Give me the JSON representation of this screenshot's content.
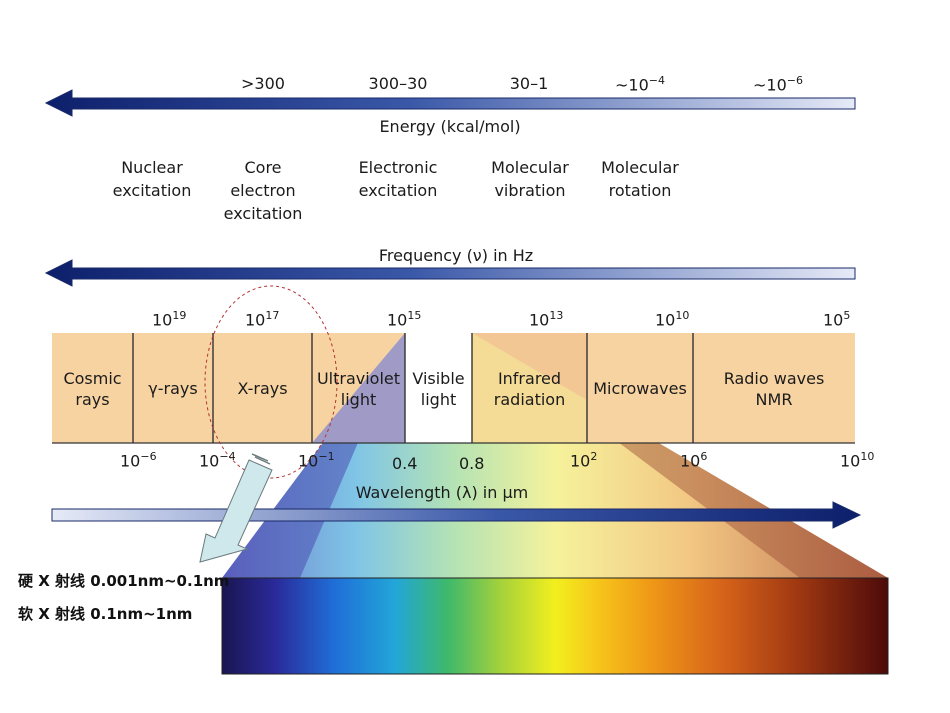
{
  "energy": {
    "values": [
      ">300",
      "300–30",
      "30–1",
      "~10",
      "~10"
    ],
    "exp_rot": "−4",
    "exp_nmr": "−6",
    "label": "Energy (kcal/mol)"
  },
  "processes": {
    "nuclear": [
      "Nuclear",
      "excitation"
    ],
    "core": [
      "Core",
      "electron",
      "excitation"
    ],
    "electronic": [
      "Electronic",
      "excitation"
    ],
    "vibration": [
      "Molecular",
      "vibration"
    ],
    "rotation": [
      "Molecular",
      "rotation"
    ]
  },
  "frequency": {
    "label": "Frequency (ν) in Hz",
    "base": "10",
    "exponents": [
      "19",
      "17",
      "15",
      "13",
      "10",
      "5"
    ]
  },
  "bands": {
    "cosmic": [
      "Cosmic",
      "rays"
    ],
    "gamma": "γ-rays",
    "xrays": "X-rays",
    "uv": [
      "Ultraviolet",
      "light"
    ],
    "visible": [
      "Visible",
      "light"
    ],
    "ir": [
      "Infrared",
      "radiation"
    ],
    "micro": "Microwaves",
    "radio": [
      "Radio waves",
      "NMR"
    ]
  },
  "wavelength": {
    "label": "Wavelength (λ) in μm",
    "base": "10",
    "exp1": "−6",
    "exp2": "−4",
    "exp3": "−1",
    "v04": "0.4",
    "v08": "0.8",
    "exp4": "2",
    "exp5": "6",
    "exp6": "10"
  },
  "notes": {
    "hard": "硬 X 射线 0.001nm~0.1nm",
    "soft": "软 X 射线 0.1nm~1nm"
  },
  "colors": {
    "arrow_dark": "#0d1f6b",
    "arrow_light": "#dde3f5",
    "band_fill": "#f7d3a2",
    "band_line": "#3a3a3a",
    "callout_arrow": "#cfe8ec",
    "ellipse": "#b43232"
  }
}
